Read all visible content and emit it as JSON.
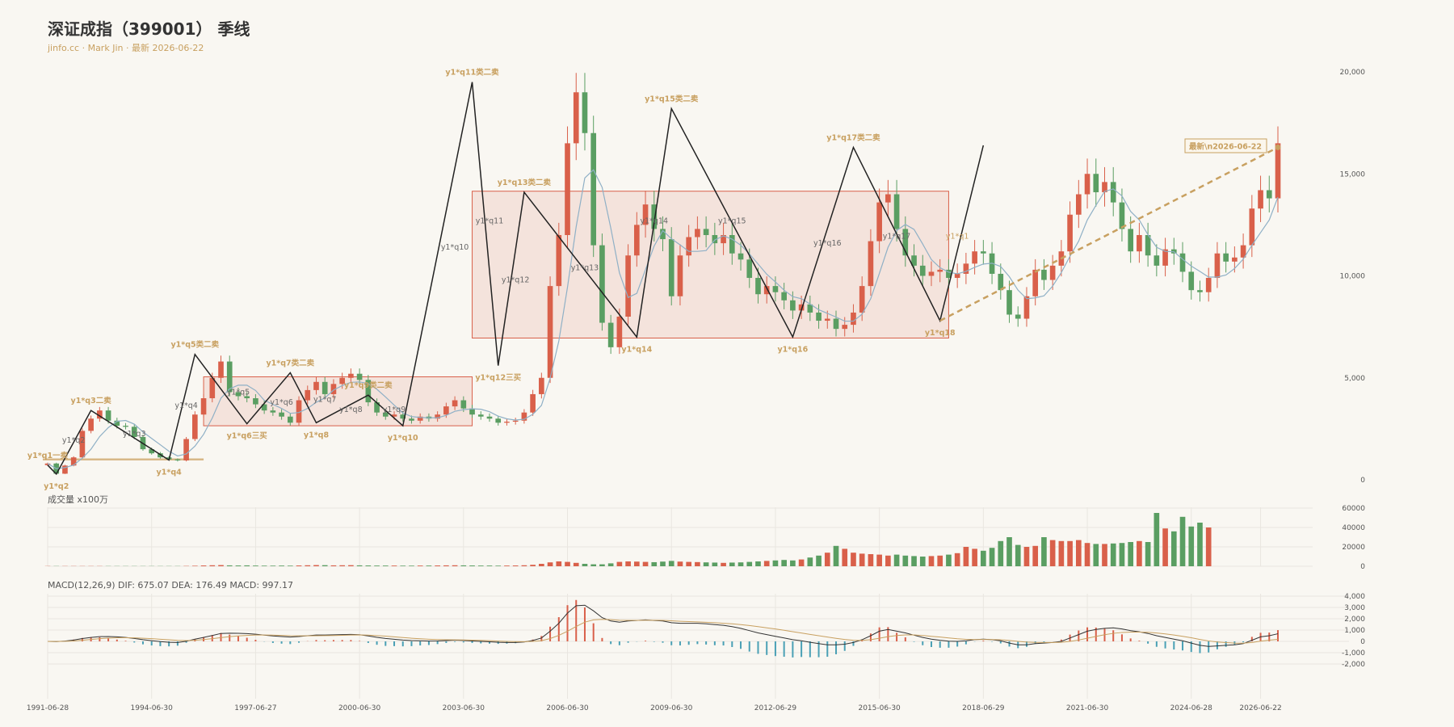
{
  "header": {
    "title": "深证成指（399001） 季线",
    "subtitle": "jinfo.cc · Mark Jin · 最新 2026-06-22"
  },
  "colors": {
    "up": "#d9604a",
    "down": "#5a9e62",
    "stroke_line": "#222222",
    "ma_line": "#8fb0c6",
    "center_fill": "#f3ddd6",
    "center_stroke": "#d9604a",
    "label_gold": "#c8a060",
    "label_gray": "#666666",
    "dif_line": "#333333",
    "dea_line": "#c8a060",
    "macd_neg": "#4aa0b5"
  },
  "volume": {
    "title": "成交量 x100万"
  },
  "macd": {
    "title": "MACD(12,26,9) DIF: 675.07 DEA: 176.49 MACD: 997.17"
  },
  "latest": {
    "label": "最新\\n2026-06-22"
  },
  "chart_data": {
    "type": "candlestick",
    "price_axis": {
      "ticks": [
        0,
        5000,
        10000,
        15000,
        20000
      ],
      "labels": [
        "0",
        "5,000",
        "10,000",
        "15,000",
        "20,000"
      ],
      "ylim": [
        0,
        20000
      ]
    },
    "volume_axis": {
      "ticks": [
        0,
        20000,
        40000,
        60000
      ],
      "labels": [
        "0",
        "20000",
        "40000",
        "60000"
      ],
      "ylim": [
        0,
        60000
      ]
    },
    "macd_axis": {
      "ticks": [
        -2000,
        -1000,
        0,
        1000,
        2000,
        3000,
        4000
      ],
      "labels": [
        "-2,000",
        "-1,000",
        "0",
        "1,000",
        "2,000",
        "3,000",
        "4,000"
      ],
      "ylim": [
        -2000,
        4000
      ]
    },
    "x_labels": [
      {
        "i": 0,
        "text": "1991-06-28"
      },
      {
        "i": 12,
        "text": "1994-06-30"
      },
      {
        "i": 24,
        "text": "1997-06-27"
      },
      {
        "i": 36,
        "text": "2000-06-30"
      },
      {
        "i": 48,
        "text": "2003-06-30"
      },
      {
        "i": 60,
        "text": "2006-06-30"
      },
      {
        "i": 72,
        "text": "2009-06-30"
      },
      {
        "i": 84,
        "text": "2012-06-29"
      },
      {
        "i": 96,
        "text": "2015-06-30"
      },
      {
        "i": 108,
        "text": "2018-06-29"
      },
      {
        "i": 120,
        "text": "2021-06-30"
      },
      {
        "i": 132,
        "text": "2024-06-28"
      },
      {
        "i": 140,
        "text": "2026-06-22"
      }
    ],
    "close": [
      800,
      300,
      700,
      1100,
      2400,
      3000,
      3400,
      2900,
      2650,
      2600,
      2100,
      1500,
      1300,
      1100,
      1000,
      950,
      2000,
      3200,
      4000,
      5000,
      5800,
      4300,
      4100,
      4000,
      3700,
      3400,
      3300,
      3100,
      2800,
      3900,
      4400,
      4800,
      4200,
      4700,
      5000,
      5200,
      4900,
      3800,
      3300,
      3100,
      3200,
      3000,
      2900,
      3100,
      3000,
      3200,
      3600,
      3900,
      3500,
      3200,
      3100,
      3000,
      2800,
      2850,
      2900,
      3300,
      4200,
      5000,
      9500,
      12000,
      16500,
      19000,
      17000,
      11500,
      7700,
      6500,
      8000,
      11000,
      12500,
      13500,
      12300,
      11800,
      9000,
      11000,
      11900,
      12300,
      12000,
      11600,
      12000,
      11100,
      10800,
      9900,
      9100,
      9500,
      9200,
      8800,
      8300,
      8600,
      8200,
      7800,
      7900,
      7400,
      7600,
      8200,
      9500,
      11700,
      13600,
      14000,
      12300,
      11000,
      10500,
      10000,
      10200,
      10300,
      9900,
      10100,
      10600,
      11200,
      11100,
      10100,
      9300,
      8100,
      7900,
      9000,
      10300,
      9800,
      10500,
      11200,
      13000,
      14000,
      15000,
      14100,
      14600,
      13600,
      12300,
      11200,
      12000,
      11000,
      10500,
      11300,
      11100,
      10200,
      9300,
      9200,
      9900,
      11100,
      10700,
      10900,
      11500,
      13300,
      14200,
      13800,
      16500
    ],
    "volume": [
      200,
      200,
      200,
      200,
      200,
      200,
      200,
      200,
      200,
      200,
      200,
      200,
      200,
      200,
      200,
      200,
      300,
      500,
      800,
      1000,
      1200,
      900,
      800,
      900,
      700,
      600,
      600,
      700,
      600,
      800,
      1000,
      1200,
      1100,
      900,
      1000,
      1100,
      900,
      800,
      700,
      700,
      700,
      600,
      600,
      700,
      700,
      800,
      900,
      1000,
      900,
      800,
      700,
      700,
      600,
      700,
      800,
      1000,
      1500,
      2500,
      4000,
      5000,
      4500,
      3500,
      2500,
      2000,
      2000,
      3000,
      4500,
      5000,
      4800,
      4500,
      4200,
      4800,
      5500,
      4800,
      4500,
      4300,
      4000,
      3800,
      3500,
      3800,
      4000,
      4500,
      5000,
      5500,
      6000,
      6500,
      6000,
      7000,
      9000,
      11000,
      14000,
      21000,
      18000,
      14000,
      13000,
      12500,
      12000,
      11000,
      12000,
      11000,
      10500,
      10000,
      10500,
      11000,
      12000,
      13500,
      20000,
      18000,
      16000,
      19000,
      26000,
      30000,
      22000,
      20000,
      21000,
      30000,
      27000,
      26000,
      26000,
      27000,
      24000,
      23000,
      23000,
      23500,
      24000,
      25000,
      26000,
      25000,
      55000,
      39000,
      36000,
      51000,
      41000,
      45000,
      40000
    ],
    "dif": [
      0,
      -20,
      30,
      120,
      250,
      350,
      420,
      430,
      400,
      350,
      260,
      150,
      60,
      -20,
      -80,
      -100,
      10,
      200,
      350,
      520,
      700,
      720,
      710,
      690,
      630,
      550,
      480,
      430,
      380,
      430,
      500,
      560,
      560,
      580,
      600,
      620,
      590,
      480,
      360,
      260,
      190,
      120,
      70,
      50,
      30,
      40,
      70,
      110,
      80,
      40,
      0,
      -40,
      -80,
      -100,
      -100,
      -50,
      80,
      300,
      900,
      1600,
      2500,
      3150,
      3200,
      2700,
      2100,
      1800,
      1700,
      1800,
      1850,
      1900,
      1850,
      1800,
      1650,
      1600,
      1600,
      1600,
      1550,
      1480,
      1420,
      1300,
      1150,
      950,
      750,
      600,
      450,
      300,
      150,
      50,
      -80,
      -200,
      -300,
      -300,
      -250,
      -100,
      150,
      500,
      900,
      1050,
      900,
      750,
      550,
      350,
      200,
      100,
      20,
      0,
      50,
      150,
      200,
      150,
      50,
      -150,
      -300,
      -300,
      -200,
      -150,
      -100,
      0,
      300,
      600,
      900,
      1050,
      1150,
      1200,
      1100,
      950,
      850,
      700,
      500,
      350,
      200,
      50,
      -150,
      -350,
      -450,
      -400,
      -350,
      -300,
      -200,
      100,
      400,
      500,
      675
    ],
    "dea": [
      0,
      -5,
      5,
      40,
      100,
      170,
      240,
      290,
      320,
      325,
      310,
      280,
      240,
      190,
      140,
      90,
      70,
      100,
      160,
      240,
      330,
      420,
      480,
      530,
      560,
      560,
      550,
      530,
      500,
      490,
      490,
      500,
      510,
      520,
      540,
      560,
      570,
      550,
      510,
      460,
      400,
      340,
      280,
      230,
      190,
      160,
      140,
      135,
      125,
      110,
      90,
      60,
      30,
      0,
      -20,
      -25,
      0,
      60,
      250,
      530,
      900,
      1320,
      1700,
      1900,
      1950,
      1920,
      1870,
      1860,
      1860,
      1870,
      1870,
      1860,
      1820,
      1780,
      1750,
      1720,
      1690,
      1650,
      1600,
      1550,
      1480,
      1400,
      1300,
      1200,
      1100,
      980,
      860,
      740,
      620,
      500,
      380,
      270,
      170,
      100,
      90,
      150,
      280,
      420,
      520,
      570,
      570,
      520,
      450,
      380,
      300,
      230,
      180,
      160,
      170,
      165,
      140,
      80,
      0,
      -60,
      -90,
      -100,
      -100,
      -80,
      0,
      120,
      280,
      440,
      590,
      710,
      790,
      820,
      820,
      800,
      740,
      660,
      560,
      450,
      320,
      170,
      40,
      -50,
      -110,
      -150,
      -160,
      -100,
      20,
      110,
      176
    ],
    "macd_hist": [
      0,
      -30,
      50,
      160,
      300,
      360,
      360,
      280,
      160,
      50,
      -100,
      -260,
      -360,
      -420,
      -440,
      -380,
      -120,
      200,
      380,
      560,
      740,
      600,
      460,
      320,
      140,
      -20,
      -140,
      -200,
      -240,
      -120,
      20,
      120,
      100,
      120,
      120,
      120,
      40,
      -140,
      -300,
      -400,
      -420,
      -440,
      -420,
      -360,
      -320,
      -240,
      -140,
      -50,
      -90,
      -140,
      -180,
      -200,
      -220,
      -200,
      -160,
      -50,
      160,
      480,
      1300,
      2140,
      3200,
      3660,
      3000,
      1600,
      300,
      -240,
      -340,
      -120,
      -20,
      60,
      -40,
      -120,
      -340,
      -360,
      -300,
      -240,
      -280,
      -340,
      -360,
      -500,
      -660,
      -900,
      -1100,
      -1200,
      -1300,
      -1360,
      -1420,
      -1380,
      -1400,
      -1400,
      -1360,
      -1140,
      -840,
      -400,
      120,
      700,
      1240,
      1260,
      760,
      360,
      -40,
      -340,
      -500,
      -560,
      -560,
      -460,
      -260,
      -20,
      60,
      -30,
      -180,
      -460,
      -600,
      -480,
      -220,
      -100,
      0,
      160,
      600,
      960,
      1240,
      1220,
      1120,
      980,
      620,
      260,
      60,
      -200,
      -480,
      -620,
      -720,
      -800,
      -940,
      -1040,
      -980,
      -700,
      -480,
      -300,
      -80,
      400,
      760,
      780,
      997
    ],
    "bis": [
      {
        "i": 0,
        "v": 720
      },
      {
        "i": 1,
        "v": 280
      },
      {
        "i": 5,
        "v": 3400
      },
      {
        "i": 14,
        "v": 970
      },
      {
        "i": 19,
        "v": 6200
      },
      {
        "i": 26,
        "v": 2750
      },
      {
        "i": 31,
        "v": 5250
      },
      {
        "i": 34,
        "v": 2800
      },
      {
        "i": 41,
        "v": 4100
      },
      {
        "i": 46,
        "v": 2650
      },
      {
        "i": 54,
        "v": 19500
      },
      {
        "i": 56,
        "v": 5800
      },
      {
        "i": 60,
        "v": 14200
      },
      {
        "i": 63,
        "v": 7000
      },
      {
        "i": 64,
        "v": 18200
      },
      {
        "i": 66,
        "v": 6800
      },
      {
        "i": 67,
        "v": 16300
      },
      {
        "i": 69,
        "v": 7800
      },
      {
        "i": 70,
        "v": 16000
      }
    ],
    "bi_points": [
      {
        "i": 0,
        "v": 720
      },
      {
        "i": 1,
        "v": 280
      },
      {
        "i": 5,
        "v": 3400
      },
      {
        "i": 14,
        "v": 970
      },
      {
        "i": 19,
        "v": 6200
      },
      {
        "i": 26,
        "v": 2750
      },
      {
        "i": 31,
        "v": 5250
      },
      {
        "i": 34,
        "v": 2800
      },
      {
        "i": 41,
        "v": 4100
      },
      {
        "i": 46,
        "v": 2650
      },
      {
        "i": 54,
        "v": 19500
      },
      {
        "i": 56,
        "v": 5800
      },
      {
        "i": 60,
        "v": 14200
      },
      {
        "i": 72,
        "v": 7000
      },
      {
        "i": 76,
        "v": 18200
      },
      {
        "i": 87,
        "v": 6800
      },
      {
        "i": 95,
        "v": 16300
      },
      {
        "i": 107,
        "v": 7800
      },
      {
        "i": 110,
        "v": 16000
      }
    ],
    "zigzag": [
      {
        "i": 0,
        "v": 720
      },
      {
        "i": 1,
        "v": 280
      },
      {
        "i": 5,
        "v": 3400
      },
      {
        "i": 14,
        "v": 970
      },
      {
        "i": 17,
        "v": 6150
      },
      {
        "i": 23,
        "v": 2750
      },
      {
        "i": 28,
        "v": 5250
      },
      {
        "i": 31,
        "v": 2800
      },
      {
        "i": 37,
        "v": 4150
      },
      {
        "i": 41,
        "v": 2650
      },
      {
        "i": 49,
        "v": 19500
      },
      {
        "i": 52,
        "v": 5600
      },
      {
        "i": 55,
        "v": 14100
      },
      {
        "i": 68,
        "v": 7000
      },
      {
        "i": 72,
        "v": 18200
      },
      {
        "i": 86,
        "v": 7000
      },
      {
        "i": 93,
        "v": 16300
      },
      {
        "i": 103,
        "v": 7800
      },
      {
        "i": 108,
        "v": 16400
      }
    ],
    "labels": [
      {
        "i": 0,
        "v": 720,
        "text": "y1*q1一卖",
        "pos": "above",
        "color": "gold"
      },
      {
        "i": 1,
        "v": 280,
        "text": "y1*q2",
        "pos": "below",
        "color": "gold"
      },
      {
        "i": 5,
        "v": 3400,
        "text": "y1*q3二卖",
        "pos": "above",
        "color": "gold"
      },
      {
        "i": 14,
        "v": 970,
        "text": "y1*q4",
        "pos": "below",
        "color": "gold"
      },
      {
        "i": 17,
        "v": 6150,
        "text": "y1*q5类二卖",
        "pos": "above",
        "color": "gold"
      },
      {
        "i": 23,
        "v": 2750,
        "text": "y1*q6三买",
        "pos": "below",
        "color": "gold"
      },
      {
        "i": 28,
        "v": 5250,
        "text": "y1*q7类二卖",
        "pos": "above",
        "color": "gold"
      },
      {
        "i": 31,
        "v": 2800,
        "text": "y1*q8",
        "pos": "below",
        "color": "gold"
      },
      {
        "i": 37,
        "v": 4150,
        "text": "y1*q9类二卖",
        "pos": "above",
        "color": "gold"
      },
      {
        "i": 41,
        "v": 2650,
        "text": "y1*q10",
        "pos": "below",
        "color": "gold"
      },
      {
        "i": 49,
        "v": 19500,
        "text": "y1*q11类二卖",
        "pos": "above",
        "color": "gold"
      },
      {
        "i": 52,
        "v": 5600,
        "text": "y1*q12三买",
        "pos": "below",
        "color": "gold"
      },
      {
        "i": 55,
        "v": 14100,
        "text": "y1*q13类二卖",
        "pos": "above",
        "color": "gold"
      },
      {
        "i": 68,
        "v": 7000,
        "text": "y1*q14",
        "pos": "below",
        "color": "gold"
      },
      {
        "i": 72,
        "v": 18200,
        "text": "y1*q15类二卖",
        "pos": "above",
        "color": "gold"
      },
      {
        "i": 86,
        "v": 7000,
        "text": "y1*q16",
        "pos": "below",
        "color": "gold"
      },
      {
        "i": 93,
        "v": 16300,
        "text": "y1*q17类二卖",
        "pos": "above",
        "color": "gold"
      },
      {
        "i": 103,
        "v": 7800,
        "text": "y1*q18",
        "pos": "below",
        "color": "gold"
      },
      {
        "i": 3,
        "v": 1950,
        "text": "y1*q2",
        "pos": "mid",
        "color": "gray"
      },
      {
        "i": 10,
        "v": 2250,
        "text": "y1*q3",
        "pos": "mid",
        "color": "gray"
      },
      {
        "i": 16,
        "v": 3650,
        "text": "y1*q4",
        "pos": "mid",
        "color": "gray"
      },
      {
        "i": 22,
        "v": 4300,
        "text": "y1*q5",
        "pos": "mid",
        "color": "gray"
      },
      {
        "i": 27,
        "v": 3800,
        "text": "y1*q6",
        "pos": "mid",
        "color": "gray"
      },
      {
        "i": 32,
        "v": 3950,
        "text": "y1*q7",
        "pos": "mid",
        "color": "gray"
      },
      {
        "i": 35,
        "v": 3450,
        "text": "y1*q8",
        "pos": "mid",
        "color": "gray"
      },
      {
        "i": 40,
        "v": 3450,
        "text": "y1*q9",
        "pos": "mid",
        "color": "gray"
      },
      {
        "i": 47,
        "v": 11400,
        "text": "y1*q10",
        "pos": "mid",
        "color": "gray"
      },
      {
        "i": 51,
        "v": 12700,
        "text": "y1*q11",
        "pos": "mid",
        "color": "gray"
      },
      {
        "i": 54,
        "v": 9800,
        "text": "y1*q12",
        "pos": "mid",
        "color": "gray"
      },
      {
        "i": 62,
        "v": 10400,
        "text": "y1*q13",
        "pos": "mid",
        "color": "gray"
      },
      {
        "i": 70,
        "v": 12700,
        "text": "y1*q14",
        "pos": "mid",
        "color": "gray"
      },
      {
        "i": 79,
        "v": 12700,
        "text": "y1*q15",
        "pos": "mid",
        "color": "gray"
      },
      {
        "i": 90,
        "v": 11600,
        "text": "y1*q16",
        "pos": "mid",
        "color": "gray"
      },
      {
        "i": 98,
        "v": 11950,
        "text": "y1*q17",
        "pos": "mid",
        "color": "gray"
      },
      {
        "i": 105,
        "v": 11950,
        "text": "y1*q1",
        "pos": "mid",
        "color": "gold"
      }
    ],
    "centers": [
      {
        "i0": 18,
        "i1": 49,
        "low": 2650,
        "high": 5050
      },
      {
        "i0": 49,
        "i1": 104,
        "low": 6950,
        "high": 14150
      }
    ],
    "support_line": {
      "i0": 0,
      "i1": 18,
      "v": 1000
    },
    "latest_dash": {
      "from": {
        "i": 103,
        "v": 7800
      },
      "to": {
        "i": 104,
        "v": 16300
      }
    }
  }
}
